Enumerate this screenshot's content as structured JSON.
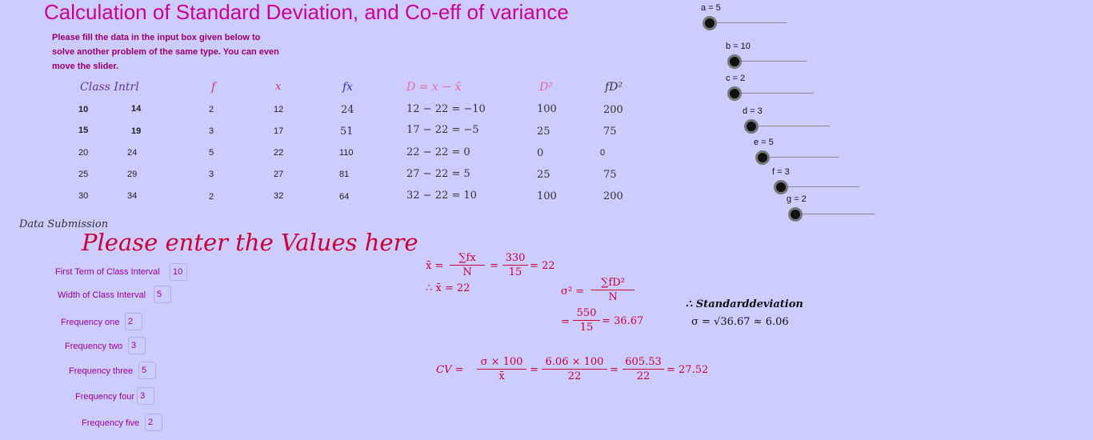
{
  "title": "Calculation of Standard Deviation, and Co-eff of variance",
  "instructions": [
    "Please fill the data in the input box given below to",
    "solve another problem of the same type. You can even",
    "move the slider."
  ],
  "table": {
    "headers": {
      "class": "Class Intrl",
      "f": "f",
      "x": "x",
      "fx": "fx",
      "D": "D = x − x̄",
      "D2": "D²",
      "fD2": "fD²"
    },
    "rows": [
      {
        "lo": "10",
        "hi": "14",
        "f": "2",
        "x": "12",
        "fx": "24",
        "D": "12 − 22 = −10",
        "D2": "100",
        "fD2": "200"
      },
      {
        "lo": "15",
        "hi": "19",
        "f": "3",
        "x": "17",
        "fx": "51",
        "D": "17 − 22 = −5",
        "D2": "25",
        "fD2": "75"
      },
      {
        "lo": "20",
        "hi": "24",
        "f": "5",
        "x": "22",
        "fx": "110",
        "D": "22 − 22 = 0",
        "D2": "0",
        "fD2": "0"
      },
      {
        "lo": "25",
        "hi": "29",
        "f": "3",
        "x": "27",
        "fx": "81",
        "D": "27 − 22 = 5",
        "D2": "25",
        "fD2": "75"
      },
      {
        "lo": "30",
        "hi": "34",
        "f": "2",
        "x": "32",
        "fx": "64",
        "D": "32 − 22 = 10",
        "D2": "100",
        "fD2": "200"
      }
    ]
  },
  "sliders": [
    {
      "label": "a = 5",
      "value": 5
    },
    {
      "label": "b = 10",
      "value": 10
    },
    {
      "label": "c = 2",
      "value": 2
    },
    {
      "label": "d = 3",
      "value": 3
    },
    {
      "label": "e = 5",
      "value": 5
    },
    {
      "label": "f = 3",
      "value": 3
    },
    {
      "label": "g = 2",
      "value": 2
    }
  ],
  "submission": {
    "heading": "Data Submission",
    "prompt": "Please enter the Values here",
    "fields": [
      {
        "label": "First Term of Class Interval",
        "value": "10"
      },
      {
        "label": "Width of Class Interval",
        "value": "5"
      },
      {
        "label": "Frequency one",
        "value": "2"
      },
      {
        "label": "Frequency two",
        "value": "3"
      },
      {
        "label": "Frequency three",
        "value": "5"
      },
      {
        "label": "Frequency four",
        "value": "3"
      },
      {
        "label": "Frequency five",
        "value": "2"
      }
    ]
  },
  "formulas": {
    "mean": {
      "lhs": "x̄ =",
      "num1": "∑fx",
      "den1": "N",
      "num2": "330",
      "den2": "15",
      "result": "= 22",
      "therefore": "∴ x̄ = 22"
    },
    "variance": {
      "lhs": "σ² =",
      "num1": "∑fD²",
      "den1": "N",
      "num2": "550",
      "den2": "15",
      "result": "= 36.67"
    },
    "sd": {
      "line1": "∴ Standarddeviation",
      "line2": "σ = √36.67 ≈ 6.06"
    },
    "cv": {
      "lhs": "CV =",
      "num1": "σ × 100",
      "den1": "x̄",
      "num2": "6.06 × 100",
      "den2": "22",
      "num3": "605.53",
      "den3": "22",
      "result": "= 27.52"
    }
  }
}
